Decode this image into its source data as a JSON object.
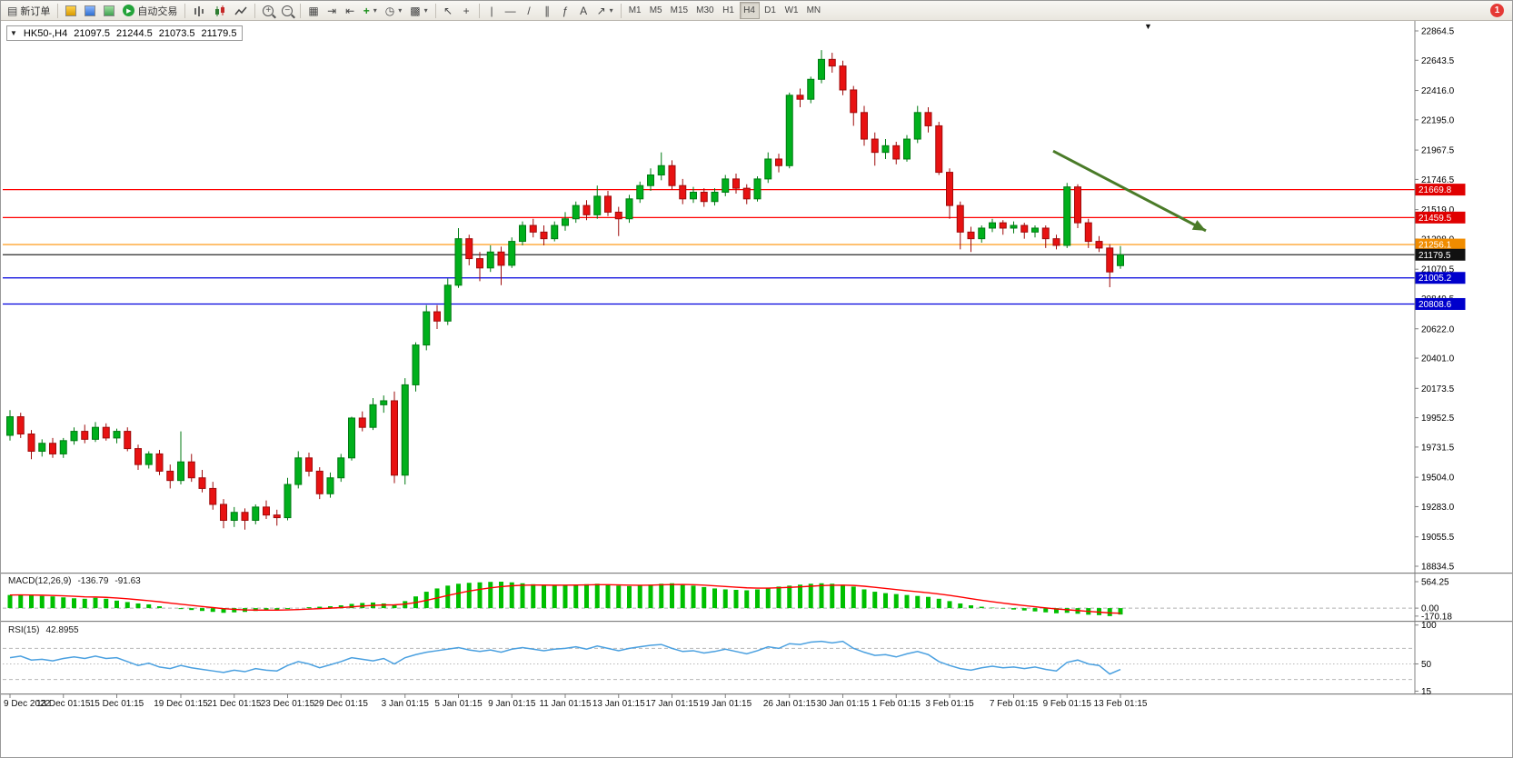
{
  "toolbar": {
    "new_order": "新订单",
    "auto_trading": "自动交易",
    "timeframes": [
      "M1",
      "M5",
      "M15",
      "M30",
      "H1",
      "H4",
      "D1",
      "W1",
      "MN"
    ],
    "active_timeframe": "H4",
    "notification_badge": "1"
  },
  "icons": {
    "new_order": "▤",
    "tile_windows": "▦",
    "auto_scroll": "⇥",
    "chart_shift": "⇤",
    "indicators": "+",
    "periods": "◷",
    "templates": "▩",
    "cursor": "↖",
    "crosshair": "+",
    "vertical_line": "|",
    "horizontal_line": "—",
    "trendline": "/",
    "channel": "∥",
    "fibonacci": "ƒ",
    "text_tool": "A",
    "arrows_tool": "↗",
    "dropdown": "▾",
    "play": "▶",
    "marker": "▼"
  },
  "chart_info": {
    "symbol_period": "HK50-,H4",
    "open": "21097.5",
    "high": "21244.5",
    "low": "21073.5",
    "close": "21179.5"
  },
  "chart_data": {
    "type": "candlestick",
    "symbol": "HK50-",
    "period": "H4",
    "price_range": {
      "max": 22864.5,
      "min": 18834.5
    },
    "price_axis_ticks": [
      "22864.5",
      "22643.5",
      "22416.0",
      "22195.0",
      "21967.5",
      "21746.5",
      "21519.0",
      "21298.0",
      "21070.5",
      "20849.5",
      "20622.0",
      "20401.0",
      "20173.5",
      "19952.5",
      "19731.5",
      "19504.0",
      "19283.0",
      "19055.5",
      "18834.5"
    ],
    "levels": [
      {
        "price": 21669.8,
        "label": "21669.8",
        "line": "#ff0000",
        "box": "#e00000"
      },
      {
        "price": 21459.5,
        "label": "21459.5",
        "line": "#ff0000",
        "box": "#e00000"
      },
      {
        "price": 21256.1,
        "label": "21256.1",
        "line": "#ff9000",
        "box": "#f08c00"
      },
      {
        "price": 21005.2,
        "label": "21005.2",
        "line": "#0000dd",
        "box": "#0000cc"
      },
      {
        "price": 20808.6,
        "label": "20808.6",
        "line": "#0000dd",
        "box": "#0000cc"
      },
      {
        "price": 21179.5,
        "label": "21179.5",
        "line": "#2a2a2a",
        "box": "#111111"
      }
    ],
    "trend_arrow": {
      "from_index": 97.7,
      "from_price": 21960,
      "to_index": 112,
      "to_price": 21360,
      "color": "#4a7b28"
    },
    "colors": {
      "up": "#00b01c",
      "up_edge": "#007a12",
      "down": "#e81212",
      "down_edge": "#9e0b0b"
    },
    "candles": [
      [
        19820,
        20010,
        19780,
        19960
      ],
      [
        19960,
        19990,
        19800,
        19830
      ],
      [
        19830,
        19860,
        19640,
        19700
      ],
      [
        19700,
        19790,
        19660,
        19760
      ],
      [
        19760,
        19800,
        19650,
        19680
      ],
      [
        19680,
        19800,
        19650,
        19780
      ],
      [
        19780,
        19880,
        19750,
        19850
      ],
      [
        19850,
        19900,
        19760,
        19790
      ],
      [
        19790,
        19920,
        19770,
        19880
      ],
      [
        19880,
        19910,
        19780,
        19800
      ],
      [
        19800,
        19870,
        19760,
        19850
      ],
      [
        19850,
        19880,
        19700,
        19720
      ],
      [
        19720,
        19750,
        19560,
        19600
      ],
      [
        19600,
        19700,
        19570,
        19680
      ],
      [
        19680,
        19710,
        19520,
        19550
      ],
      [
        19550,
        19600,
        19420,
        19480
      ],
      [
        19480,
        19850,
        19450,
        19620
      ],
      [
        19620,
        19680,
        19470,
        19500
      ],
      [
        19500,
        19560,
        19390,
        19420
      ],
      [
        19420,
        19470,
        19260,
        19300
      ],
      [
        19300,
        19340,
        19120,
        19180
      ],
      [
        19180,
        19280,
        19130,
        19240
      ],
      [
        19240,
        19270,
        19110,
        19180
      ],
      [
        19180,
        19300,
        19150,
        19280
      ],
      [
        19280,
        19330,
        19190,
        19220
      ],
      [
        19220,
        19260,
        19140,
        19200
      ],
      [
        19200,
        19500,
        19180,
        19450
      ],
      [
        19450,
        19700,
        19420,
        19650
      ],
      [
        19650,
        19690,
        19510,
        19550
      ],
      [
        19550,
        19580,
        19340,
        19380
      ],
      [
        19380,
        19540,
        19350,
        19500
      ],
      [
        19500,
        19680,
        19470,
        19650
      ],
      [
        19650,
        19960,
        19630,
        19950
      ],
      [
        19950,
        20000,
        19850,
        19880
      ],
      [
        19880,
        20100,
        19860,
        20050
      ],
      [
        20050,
        20120,
        19990,
        20080
      ],
      [
        20080,
        20150,
        19460,
        19520
      ],
      [
        19520,
        20250,
        19450,
        20200
      ],
      [
        20200,
        20520,
        20150,
        20500
      ],
      [
        20500,
        20800,
        20460,
        20750
      ],
      [
        20750,
        20800,
        20620,
        20680
      ],
      [
        20680,
        21000,
        20650,
        20950
      ],
      [
        20950,
        21380,
        20930,
        21300
      ],
      [
        21300,
        21330,
        21100,
        21150
      ],
      [
        21150,
        21200,
        20980,
        21080
      ],
      [
        21080,
        21250,
        21050,
        21200
      ],
      [
        21200,
        21240,
        20950,
        21100
      ],
      [
        21100,
        21310,
        21080,
        21280
      ],
      [
        21280,
        21430,
        21250,
        21400
      ],
      [
        21400,
        21450,
        21310,
        21350
      ],
      [
        21350,
        21400,
        21250,
        21300
      ],
      [
        21300,
        21430,
        21280,
        21400
      ],
      [
        21400,
        21500,
        21360,
        21450
      ],
      [
        21450,
        21580,
        21420,
        21550
      ],
      [
        21550,
        21590,
        21440,
        21480
      ],
      [
        21480,
        21700,
        21450,
        21620
      ],
      [
        21620,
        21660,
        21470,
        21500
      ],
      [
        21500,
        21540,
        21320,
        21450
      ],
      [
        21450,
        21630,
        21420,
        21600
      ],
      [
        21600,
        21730,
        21570,
        21700
      ],
      [
        21700,
        21830,
        21660,
        21780
      ],
      [
        21780,
        21950,
        21740,
        21850
      ],
      [
        21850,
        21890,
        21670,
        21700
      ],
      [
        21700,
        21750,
        21560,
        21600
      ],
      [
        21600,
        21690,
        21570,
        21650
      ],
      [
        21650,
        21680,
        21540,
        21580
      ],
      [
        21580,
        21680,
        21550,
        21650
      ],
      [
        21650,
        21780,
        21620,
        21750
      ],
      [
        21750,
        21790,
        21640,
        21680
      ],
      [
        21680,
        21710,
        21560,
        21600
      ],
      [
        21600,
        21770,
        21580,
        21750
      ],
      [
        21750,
        21950,
        21720,
        21900
      ],
      [
        21900,
        21940,
        21800,
        21850
      ],
      [
        21850,
        22400,
        21830,
        22380
      ],
      [
        22380,
        22430,
        22290,
        22350
      ],
      [
        22350,
        22520,
        22320,
        22500
      ],
      [
        22500,
        22720,
        22470,
        22650
      ],
      [
        22650,
        22700,
        22550,
        22600
      ],
      [
        22600,
        22640,
        22380,
        22420
      ],
      [
        22420,
        22450,
        22150,
        22250
      ],
      [
        22250,
        22300,
        22000,
        22050
      ],
      [
        22050,
        22100,
        21850,
        21950
      ],
      [
        21950,
        22050,
        21900,
        22000
      ],
      [
        22000,
        22030,
        21860,
        21900
      ],
      [
        21900,
        22080,
        21880,
        22050
      ],
      [
        22050,
        22300,
        22020,
        22250
      ],
      [
        22250,
        22290,
        22100,
        22150
      ],
      [
        22150,
        22180,
        21780,
        21800
      ],
      [
        21800,
        21830,
        21450,
        21550
      ],
      [
        21550,
        21580,
        21220,
        21350
      ],
      [
        21350,
        21390,
        21200,
        21300
      ],
      [
        21300,
        21400,
        21270,
        21380
      ],
      [
        21380,
        21450,
        21350,
        21420
      ],
      [
        21420,
        21440,
        21330,
        21380
      ],
      [
        21380,
        21430,
        21340,
        21400
      ],
      [
        21400,
        21420,
        21300,
        21350
      ],
      [
        21350,
        21400,
        21310,
        21380
      ],
      [
        21380,
        21400,
        21230,
        21300
      ],
      [
        21300,
        21330,
        21220,
        21250
      ],
      [
        21250,
        21720,
        21230,
        21690
      ],
      [
        21690,
        21710,
        21380,
        21420
      ],
      [
        21420,
        21450,
        21230,
        21280
      ],
      [
        21280,
        21320,
        21200,
        21230
      ],
      [
        21230,
        21260,
        20935,
        21050
      ],
      [
        21097.5,
        21244.5,
        21073.5,
        21179.5
      ]
    ],
    "time_labels": [
      {
        "text": "9 Dec 2022",
        "index": 0
      },
      {
        "text": "13 Dec 01:15",
        "index": 5
      },
      {
        "text": "15 Dec 01:15",
        "index": 10
      },
      {
        "text": "19 Dec 01:15",
        "index": 16
      },
      {
        "text": "21 Dec 01:15",
        "index": 21
      },
      {
        "text": "23 Dec 01:15",
        "index": 26
      },
      {
        "text": "29 Dec 01:15",
        "index": 31
      },
      {
        "text": "3 Jan 01:15",
        "index": 37
      },
      {
        "text": "5 Jan 01:15",
        "index": 42
      },
      {
        "text": "9 Jan 01:15",
        "index": 47
      },
      {
        "text": "11 Jan 01:15",
        "index": 52
      },
      {
        "text": "13 Jan 01:15",
        "index": 57
      },
      {
        "text": "17 Jan 01:15",
        "index": 62
      },
      {
        "text": "19 Jan 01:15",
        "index": 67
      },
      {
        "text": "26 Jan 01:15",
        "index": 73
      },
      {
        "text": "30 Jan 01:15",
        "index": 78
      },
      {
        "text": "1 Feb 01:15",
        "index": 83
      },
      {
        "text": "3 Feb 01:15",
        "index": 88
      },
      {
        "text": "7 Feb 01:15",
        "index": 94
      },
      {
        "text": "9 Feb 01:15",
        "index": 99
      },
      {
        "text": "13 Feb 01:15",
        "index": 104
      }
    ]
  },
  "macd": {
    "title": "MACD(12,26,9)",
    "value_main": "-136.79",
    "value_signal": "-91.63",
    "axis": [
      "564.25",
      "0.00",
      "-170.18"
    ],
    "range": {
      "max": 700,
      "min": -250
    },
    "color_main": "#00c000",
    "color_signal": "#ff0000",
    "main": [
      280,
      290,
      270,
      260,
      250,
      230,
      210,
      200,
      220,
      200,
      160,
      130,
      100,
      80,
      40,
      0,
      -20,
      -40,
      -60,
      -80,
      -100,
      -90,
      -80,
      -60,
      -50,
      -40,
      -20,
      0,
      20,
      30,
      40,
      60,
      90,
      110,
      120,
      100,
      80,
      150,
      250,
      350,
      420,
      480,
      520,
      540,
      550,
      560,
      564,
      550,
      530,
      510,
      490,
      480,
      490,
      500,
      510,
      520,
      500,
      480,
      470,
      480,
      500,
      520,
      530,
      510,
      480,
      450,
      420,
      400,
      390,
      380,
      400,
      430,
      460,
      480,
      500,
      520,
      530,
      520,
      500,
      460,
      400,
      350,
      320,
      300,
      280,
      260,
      240,
      200,
      150,
      100,
      60,
      30,
      10,
      -10,
      -30,
      -50,
      -70,
      -90,
      -110,
      -100,
      -120,
      -140,
      -150,
      -170,
      -136.79
    ]
  },
  "rsi": {
    "title": "RSI(15)",
    "value": "42.8955",
    "axis": [
      "100",
      "50",
      "15"
    ],
    "range": {
      "max": 102,
      "min": 12
    },
    "levels": [
      70,
      50,
      30
    ],
    "color": "#4aa0e0",
    "values": [
      58,
      60,
      55,
      56,
      54,
      57,
      59,
      57,
      60,
      57,
      58,
      53,
      48,
      51,
      46,
      44,
      48,
      45,
      43,
      41,
      39,
      42,
      40,
      44,
      42,
      41,
      48,
      53,
      50,
      45,
      49,
      53,
      58,
      56,
      54,
      57,
      50,
      58,
      62,
      65,
      67,
      69,
      71,
      68,
      66,
      68,
      65,
      69,
      71,
      69,
      67,
      69,
      70,
      72,
      69,
      73,
      70,
      67,
      70,
      72,
      74,
      75,
      70,
      66,
      67,
      64,
      66,
      69,
      66,
      63,
      67,
      72,
      70,
      76,
      75,
      78,
      79,
      77,
      79,
      70,
      65,
      61,
      62,
      59,
      63,
      66,
      62,
      53,
      48,
      44,
      42,
      45,
      47,
      45,
      46,
      44,
      46,
      43,
      41,
      52,
      55,
      50,
      48,
      37,
      42.9
    ]
  }
}
